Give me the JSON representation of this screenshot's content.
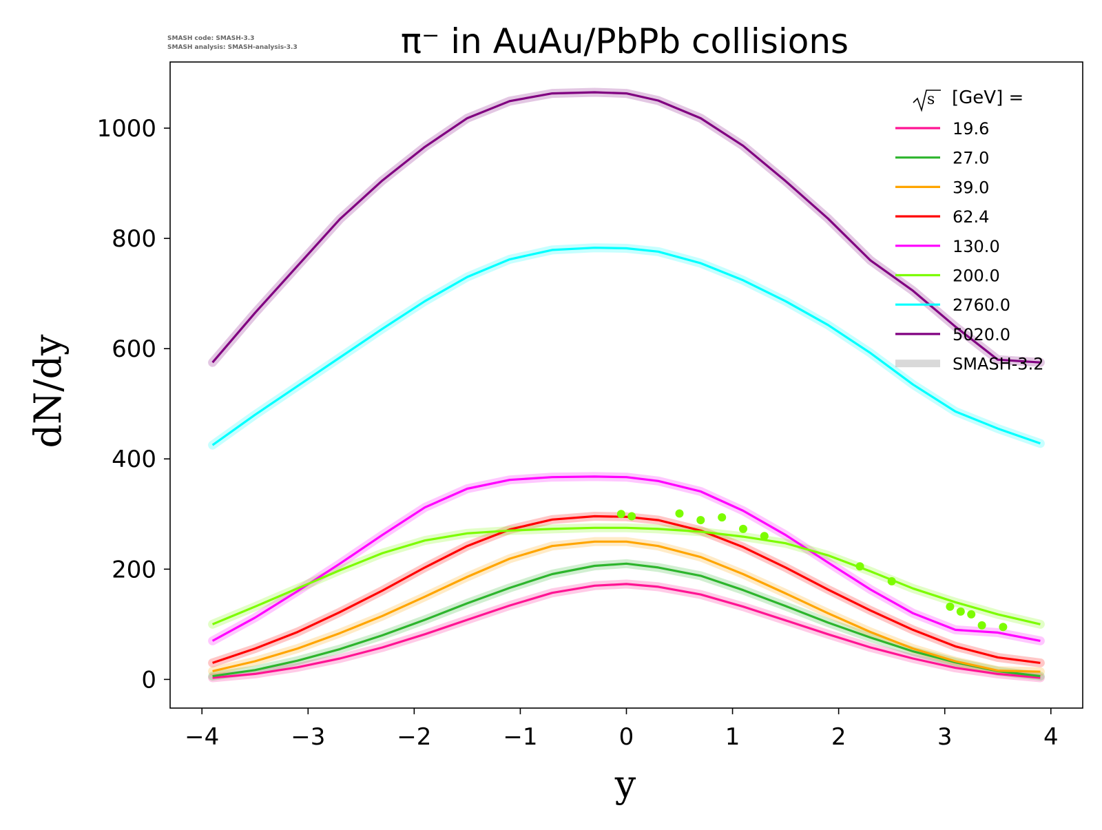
{
  "meta_lines": [
    "SMASH code:      SMASH-3.3",
    "SMASH analysis: SMASH-analysis-3.3"
  ],
  "chart_data": {
    "type": "line",
    "title": "π⁻ in AuAu/PbPb collisions",
    "xlabel": "y",
    "ylabel": "dN/dy",
    "xlim": [
      -4.3,
      4.3
    ],
    "ylim": [
      -52,
      1120
    ],
    "xticks": [
      -4,
      -3,
      -2,
      -1,
      0,
      1,
      2,
      3,
      4
    ],
    "xtick_labels": [
      "−4",
      "−3",
      "−2",
      "−1",
      "0",
      "1",
      "2",
      "3",
      "4"
    ],
    "yticks": [
      0,
      200,
      400,
      600,
      800,
      1000
    ],
    "ytick_labels": [
      "0",
      "200",
      "400",
      "600",
      "800",
      "1000"
    ],
    "grid": false,
    "legend_position": "top-right",
    "legend_title": "[GeV] =",
    "legend_title_sqrt": "s",
    "reference_label": "SMASH-3.2",
    "x": [
      -3.9,
      -3.5,
      -3.1,
      -2.7,
      -2.3,
      -1.9,
      -1.5,
      -1.1,
      -0.7,
      -0.3,
      0.0,
      0.3,
      0.7,
      1.1,
      1.5,
      1.9,
      2.3,
      2.7,
      3.1,
      3.5,
      3.9
    ],
    "series": [
      {
        "name": "19.6",
        "color": "#ff1493",
        "values": [
          3,
          10,
          22,
          38,
          58,
          82,
          108,
          134,
          157,
          170,
          173,
          168,
          154,
          132,
          107,
          82,
          58,
          38,
          21,
          10,
          3
        ]
      },
      {
        "name": "27.0",
        "color": "#2db52d",
        "values": [
          6,
          17,
          34,
          55,
          80,
          108,
          138,
          166,
          191,
          206,
          210,
          203,
          188,
          162,
          133,
          103,
          76,
          51,
          31,
          15,
          6
        ]
      },
      {
        "name": "39.0",
        "color": "#ffa500",
        "values": [
          15,
          33,
          56,
          84,
          115,
          150,
          186,
          219,
          242,
          250,
          250,
          242,
          222,
          191,
          156,
          120,
          86,
          56,
          33,
          16,
          14
        ]
      },
      {
        "name": "62.4",
        "color": "#ff0000",
        "values": [
          30,
          56,
          86,
          122,
          161,
          203,
          242,
          272,
          290,
          296,
          295,
          289,
          270,
          240,
          203,
          163,
          125,
          90,
          60,
          40,
          30
        ]
      },
      {
        "name": "130.0",
        "color": "#ff00ff",
        "values": [
          70,
          112,
          160,
          210,
          262,
          312,
          346,
          362,
          367,
          368,
          367,
          360,
          341,
          306,
          262,
          212,
          163,
          120,
          90,
          85,
          70
        ]
      },
      {
        "name": "200.0",
        "color": "#7cfc00",
        "values": [
          100,
          132,
          165,
          198,
          229,
          252,
          265,
          270,
          273,
          275,
          275,
          273,
          268,
          259,
          247,
          225,
          196,
          165,
          140,
          118,
          100
        ]
      },
      {
        "name": "2760.0",
        "color": "#00ffff",
        "values": [
          425,
          480,
          532,
          584,
          636,
          686,
          730,
          762,
          779,
          783,
          782,
          776,
          755,
          724,
          686,
          643,
          592,
          535,
          486,
          455,
          428
        ]
      },
      {
        "name": "5020.0",
        "color": "#800080",
        "values": [
          575,
          665,
          750,
          835,
          905,
          966,
          1018,
          1049,
          1063,
          1065,
          1063,
          1050,
          1018,
          968,
          904,
          836,
          760,
          705,
          640,
          580,
          575
        ]
      }
    ],
    "data_points": {
      "name": "200.0",
      "color": "#7cfc00",
      "x": [
        -0.05,
        0.05,
        0.5,
        0.7,
        0.9,
        1.1,
        1.3,
        2.2,
        2.5,
        3.05,
        3.15,
        3.25,
        3.35,
        3.55
      ],
      "y": [
        300,
        296,
        301,
        289,
        294,
        273,
        260,
        205,
        178,
        132,
        123,
        118,
        98,
        95
      ]
    }
  }
}
